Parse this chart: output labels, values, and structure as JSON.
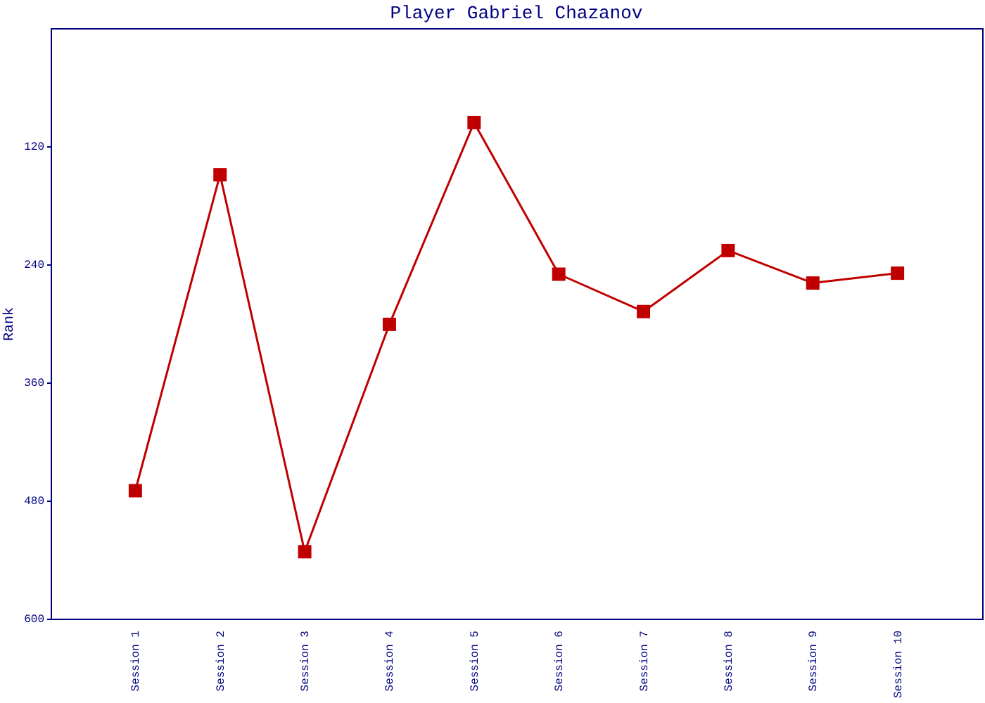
{
  "chart_data": {
    "type": "line",
    "title": "Player Gabriel Chazanov",
    "ylabel": "Rank",
    "categories": [
      "Session 1",
      "Session 2",
      "Session 3",
      "Session 4",
      "Session 5",
      "Session 6",
      "Session 7",
      "Session 8",
      "Session 9",
      "Session 10"
    ],
    "series": [
      {
        "color": "#c00000",
        "values": [
          470,
          149,
          532,
          301,
          96,
          250,
          288,
          226,
          259,
          249
        ]
      }
    ],
    "ylim": [
      600,
      0
    ],
    "yticks": [
      120,
      240,
      360,
      480,
      600
    ],
    "grid": false,
    "marker": "square",
    "line_style": "solid"
  }
}
